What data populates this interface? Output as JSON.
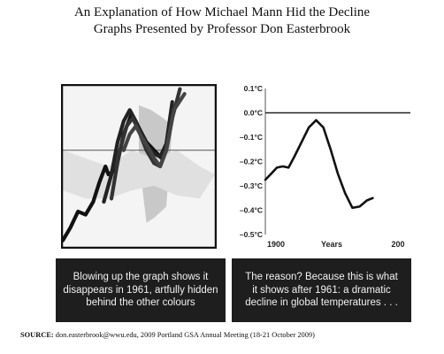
{
  "header": {
    "title": "An Explanation of How Michael Mann Hid the Decline",
    "subtitle": "Graphs Presented by Professor Don Easterbrook"
  },
  "chart_data": [
    {
      "type": "line",
      "title": "",
      "xlabel": "",
      "ylabel": "",
      "grid": false,
      "series": [
        {
          "color": "#111111",
          "values": [
            [
              0,
              0.96
            ],
            [
              0.05,
              0.88
            ],
            [
              0.1,
              0.78
            ],
            [
              0.15,
              0.8
            ],
            [
              0.2,
              0.72
            ],
            [
              0.24,
              0.6
            ],
            [
              0.28,
              0.5
            ],
            [
              0.3,
              0.55
            ],
            [
              0.35,
              0.52
            ],
            [
              0.4,
              0.3
            ],
            [
              0.45,
              0.18
            ],
            [
              0.5,
              0.26
            ],
            [
              0.55,
              0.35
            ],
            [
              0.6,
              0.4
            ],
            [
              0.65,
              0.45
            ],
            [
              0.68,
              0.4
            ]
          ]
        },
        {
          "color": "#222222",
          "values": [
            [
              0.27,
              0.72
            ],
            [
              0.32,
              0.55
            ],
            [
              0.36,
              0.35
            ],
            [
              0.4,
              0.22
            ],
            [
              0.44,
              0.15
            ],
            [
              0.48,
              0.22
            ],
            [
              0.52,
              0.3
            ],
            [
              0.56,
              0.38
            ],
            [
              0.6,
              0.42
            ],
            [
              0.64,
              0.44
            ],
            [
              0.68,
              0.36
            ],
            [
              0.72,
              0.1
            ]
          ]
        },
        {
          "color": "#333333",
          "values": [
            [
              0.32,
              0.7
            ],
            [
              0.37,
              0.42
            ],
            [
              0.42,
              0.25
            ],
            [
              0.46,
              0.2
            ],
            [
              0.5,
              0.28
            ],
            [
              0.55,
              0.4
            ],
            [
              0.6,
              0.48
            ],
            [
              0.64,
              0.5
            ],
            [
              0.68,
              0.4
            ],
            [
              0.72,
              0.2
            ],
            [
              0.77,
              0.02
            ]
          ]
        },
        {
          "color": "#444444",
          "values": [
            [
              0.4,
              0.4
            ],
            [
              0.44,
              0.3
            ],
            [
              0.48,
              0.25
            ],
            [
              0.52,
              0.32
            ],
            [
              0.56,
              0.38
            ],
            [
              0.6,
              0.45
            ],
            [
              0.64,
              0.5
            ],
            [
              0.68,
              0.4
            ],
            [
              0.73,
              0.15
            ],
            [
              0.8,
              0.05
            ]
          ]
        }
      ],
      "bands": [
        {
          "color": "#c8c8c8",
          "upper": [
            [
              0.5,
              0.12
            ],
            [
              0.58,
              0.15
            ],
            [
              0.66,
              0.2
            ],
            [
              0.72,
              0.25
            ]
          ],
          "lower": [
            [
              0.72,
              0.25
            ],
            [
              0.68,
              0.75
            ],
            [
              0.6,
              0.82
            ],
            [
              0.55,
              0.85
            ],
            [
              0.5,
              0.45
            ]
          ]
        },
        {
          "color": "#e0e0e0",
          "upper": [
            [
              0,
              0.4
            ],
            [
              0.15,
              0.45
            ],
            [
              0.3,
              0.5
            ],
            [
              0.45,
              0.4
            ],
            [
              0.6,
              0.45
            ],
            [
              0.75,
              0.4
            ],
            [
              0.9,
              0.5
            ],
            [
              1,
              0.55
            ]
          ],
          "lower": [
            [
              1,
              0.55
            ],
            [
              0.9,
              0.7
            ],
            [
              0.75,
              0.68
            ],
            [
              0.6,
              0.62
            ],
            [
              0.45,
              0.65
            ],
            [
              0.3,
              0.7
            ],
            [
              0.15,
              0.7
            ],
            [
              0,
              0.65
            ]
          ]
        }
      ],
      "reference_line": 0.4
    },
    {
      "type": "line",
      "title": "",
      "xlabel": "Years",
      "ylabel": "",
      "grid": false,
      "ylim": [
        -0.5,
        0.1
      ],
      "yticks": [
        0.1,
        0.0,
        -0.1,
        -0.2,
        -0.3,
        -0.4,
        -0.5
      ],
      "ytick_labels": [
        "0.1°C",
        "0.0°C",
        "–0.1°C",
        "–0.2°C",
        "–0.3°C",
        "–0.4°C",
        "–0.5°C"
      ],
      "xtick_labels": [
        "1900",
        "Years",
        "200"
      ],
      "series": [
        {
          "color": "#111111",
          "values": [
            [
              0,
              -0.275
            ],
            [
              0.04,
              -0.25
            ],
            [
              0.08,
              -0.225
            ],
            [
              0.12,
              -0.22
            ],
            [
              0.16,
              -0.225
            ],
            [
              0.2,
              -0.18
            ],
            [
              0.25,
              -0.12
            ],
            [
              0.3,
              -0.06
            ],
            [
              0.35,
              -0.03
            ],
            [
              0.4,
              -0.06
            ],
            [
              0.45,
              -0.15
            ],
            [
              0.5,
              -0.25
            ],
            [
              0.55,
              -0.33
            ],
            [
              0.6,
              -0.39
            ],
            [
              0.65,
              -0.385
            ],
            [
              0.7,
              -0.36
            ],
            [
              0.74,
              -0.35
            ]
          ]
        }
      ]
    }
  ],
  "captions": {
    "left": [
      "Blowing up the graph shows it",
      "disappears in 1961, artfully hidden",
      "behind the other colours"
    ],
    "right": [
      "The reason? Because this is what",
      "it shows after 1961: a dramatic",
      "decline in global temperatures . . ."
    ]
  },
  "source": {
    "label": "SOURCE:",
    "text": "don.easterbrook@wwu.edu, 2009 Portland GSA Annual Meeting (18-21 October 2009)"
  }
}
